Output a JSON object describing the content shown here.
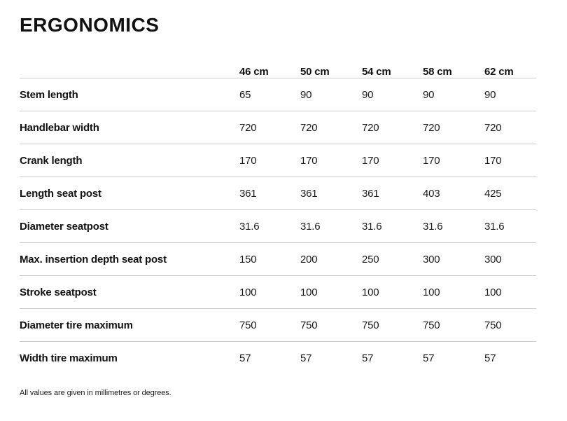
{
  "page": {
    "title": "ERGONOMICS",
    "footnote": "All values are given in millimetres or degrees."
  },
  "table": {
    "columns": [
      "46 cm",
      "50 cm",
      "54 cm",
      "58 cm",
      "62 cm"
    ],
    "rows": [
      {
        "label": "Stem length",
        "values": [
          "65",
          "90",
          "90",
          "90",
          "90"
        ]
      },
      {
        "label": "Handlebar width",
        "values": [
          "720",
          "720",
          "720",
          "720",
          "720"
        ]
      },
      {
        "label": "Crank length",
        "values": [
          "170",
          "170",
          "170",
          "170",
          "170"
        ]
      },
      {
        "label": "Length seat post",
        "values": [
          "361",
          "361",
          "361",
          "403",
          "425"
        ]
      },
      {
        "label": "Diameter seatpost",
        "values": [
          "31.6",
          "31.6",
          "31.6",
          "31.6",
          "31.6"
        ]
      },
      {
        "label": "Max. insertion depth seat post",
        "values": [
          "150",
          "200",
          "250",
          "300",
          "300"
        ]
      },
      {
        "label": "Stroke seatpost",
        "values": [
          "100",
          "100",
          "100",
          "100",
          "100"
        ]
      },
      {
        "label": "Diameter tire maximum",
        "values": [
          "750",
          "750",
          "750",
          "750",
          "750"
        ]
      },
      {
        "label": "Width tire maximum",
        "values": [
          "57",
          "57",
          "57",
          "57",
          "57"
        ]
      }
    ]
  },
  "colors": {
    "text": "#121212",
    "divider": "#cbcbcb",
    "background": "#ffffff"
  }
}
